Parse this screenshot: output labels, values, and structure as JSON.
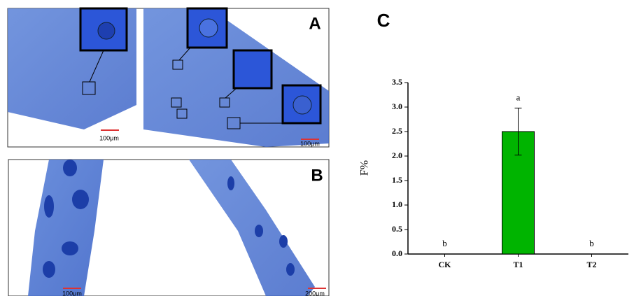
{
  "panels": {
    "a": {
      "label": "A",
      "scale_left": "100μm",
      "scale_right": "100μm"
    },
    "b": {
      "label": "B",
      "scale_left": "100μm",
      "scale_right": "200μm"
    }
  },
  "chart_data": {
    "type": "bar",
    "panel_label": "C",
    "ylabel": "F%",
    "categories": [
      "CK",
      "T1",
      "T2"
    ],
    "values": [
      0,
      2.5,
      0
    ],
    "errors": [
      0,
      0.48,
      0
    ],
    "annotations": [
      "b",
      "a",
      "b"
    ],
    "color": "#00b400",
    "ylim": [
      0,
      3.5
    ],
    "yticks": [
      {
        "value": 0,
        "label": "0.0"
      },
      {
        "value": 0.5,
        "label": "0.5"
      },
      {
        "value": 1,
        "label": "1.0"
      },
      {
        "value": 1.5,
        "label": "1.5"
      },
      {
        "value": 2,
        "label": "2.0"
      },
      {
        "value": 2.5,
        "label": "2.5"
      },
      {
        "value": 3,
        "label": "3.0"
      },
      {
        "value": 3.5,
        "label": "3.5"
      }
    ]
  }
}
